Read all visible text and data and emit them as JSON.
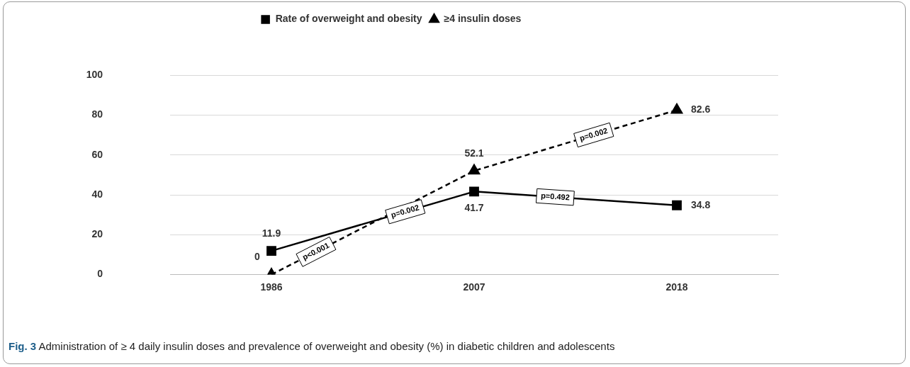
{
  "chart_data": {
    "type": "line",
    "categories": [
      "1986",
      "2007",
      "2018"
    ],
    "series": [
      {
        "name": "Rate of overweight and obesity",
        "color": "#000000",
        "values": [
          11.9,
          41.7,
          34.8
        ],
        "marker": "square",
        "line_style": "solid"
      },
      {
        "name": "≥4 insulin doses",
        "color": "#000000",
        "values": [
          0,
          52.1,
          82.6
        ],
        "marker": "triangle",
        "line_style": "dashed"
      }
    ],
    "ylim": [
      0,
      100
    ],
    "yticks": [
      0,
      20,
      40,
      60,
      80,
      100
    ],
    "grid": "y",
    "legend": "top",
    "data_labels": true,
    "annotations": [
      "p<0.001",
      "p=0.002",
      "p=0.492",
      "p=0.002",
      "Fig. 3 Administration of ≥ 4 daily insulin doses and prevalence of overweight and obesity (%) in diabetic children and adolescents"
    ]
  }
}
